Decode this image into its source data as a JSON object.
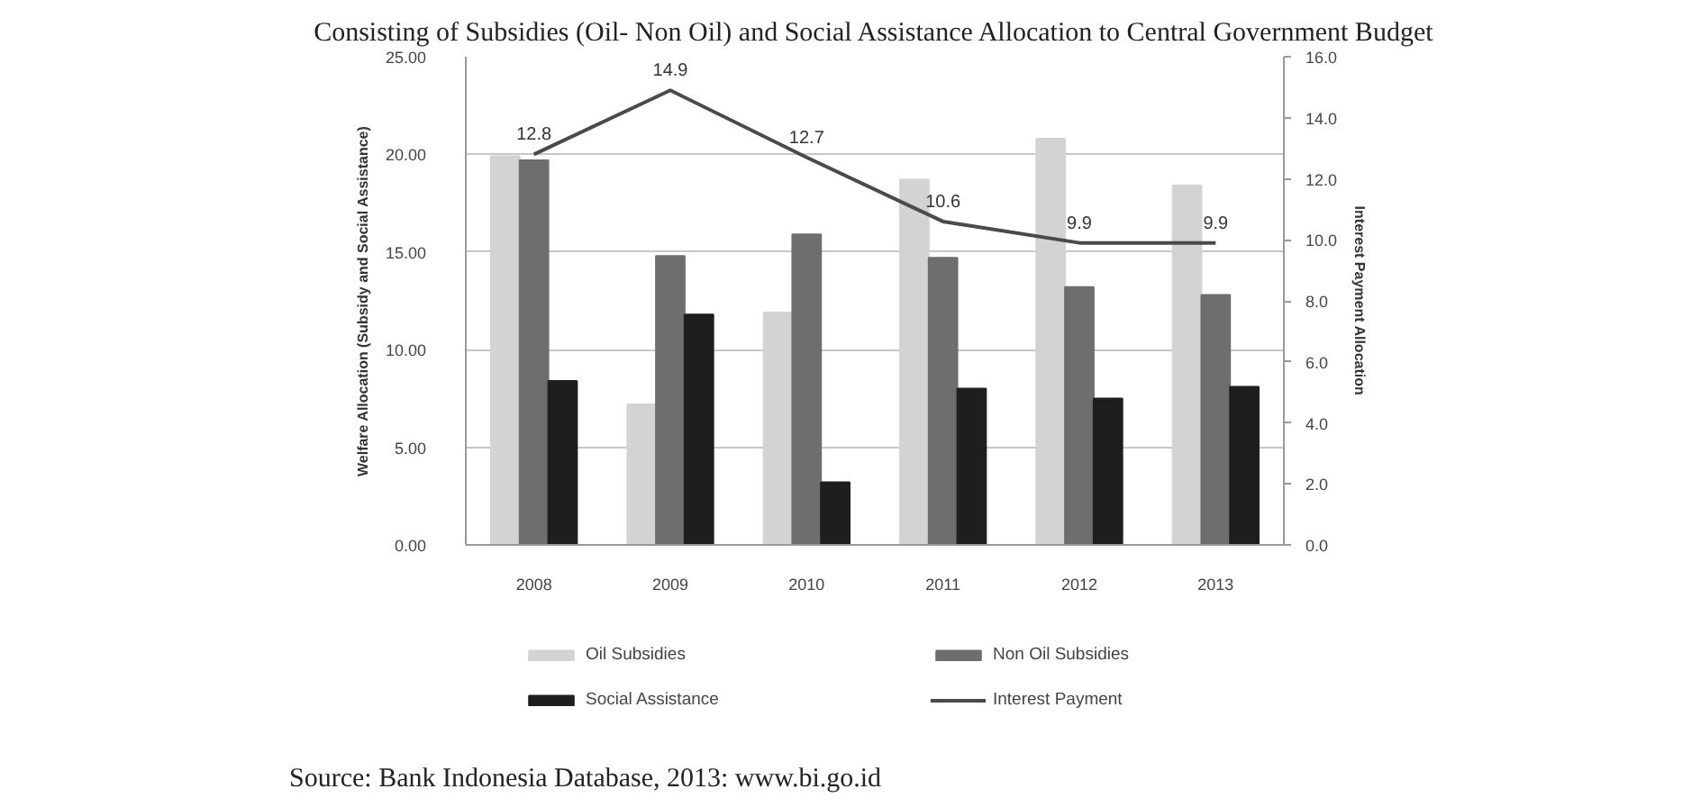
{
  "chart_data": {
    "type": "bar",
    "title": "Consisting of Subsidies (Oil- Non Oil) and Social Assistance Allocation to Central Government Budget",
    "ylabel": "Welfare Allocation (Subsidy and Social Assistance)",
    "y2label": "Interest Payment Allocation",
    "annotations": [
      "Source: Bank Indonesia Database, 2013: www.bi.go.id"
    ],
    "categories": [
      "2008",
      "2009",
      "2010",
      "2011",
      "2012",
      "2013"
    ],
    "series": [
      {
        "name": "Oil Subsidies",
        "color": "#d3d3d3",
        "values": [
          19.9,
          7.2,
          11.9,
          18.7,
          20.8,
          18.4
        ]
      },
      {
        "name": "Non Oil Subsidies",
        "color": "#6e6e6e",
        "values": [
          19.7,
          14.8,
          15.9,
          14.7,
          13.2,
          12.8
        ]
      },
      {
        "name": "Social Assistance",
        "color": "#1e1e1e",
        "values": [
          8.4,
          11.8,
          3.2,
          8.0,
          7.5,
          8.1
        ]
      },
      {
        "name": "Interest Payment",
        "type": "line",
        "axis": "y2",
        "color": "#4a4a4a",
        "values": [
          12.8,
          14.9,
          12.7,
          10.6,
          9.9,
          9.9
        ],
        "data_labels": true
      }
    ],
    "ylim": [
      0,
      25
    ],
    "yticks": [
      {
        "value": 0,
        "label": "0.00"
      },
      {
        "value": 5,
        "label": "5.00"
      },
      {
        "value": 10,
        "label": "10.00"
      },
      {
        "value": 15,
        "label": "15.00"
      },
      {
        "value": 20,
        "label": "20.00"
      },
      {
        "value": 25,
        "label": "25.00"
      }
    ],
    "y2lim": [
      0,
      16
    ],
    "y2ticks": [
      {
        "value": 0,
        "label": "0.0"
      },
      {
        "value": 2,
        "label": "2.0"
      },
      {
        "value": 4,
        "label": "4.0"
      },
      {
        "value": 6,
        "label": "6.0"
      },
      {
        "value": 8,
        "label": "8.0"
      },
      {
        "value": 10,
        "label": "10.0"
      },
      {
        "value": 12,
        "label": "12.0"
      },
      {
        "value": 14,
        "label": "14.0"
      },
      {
        "value": 16,
        "label": "16.0"
      }
    ],
    "grid": "y",
    "legend": "bottom",
    "marker": "none",
    "line_style": "solid"
  }
}
